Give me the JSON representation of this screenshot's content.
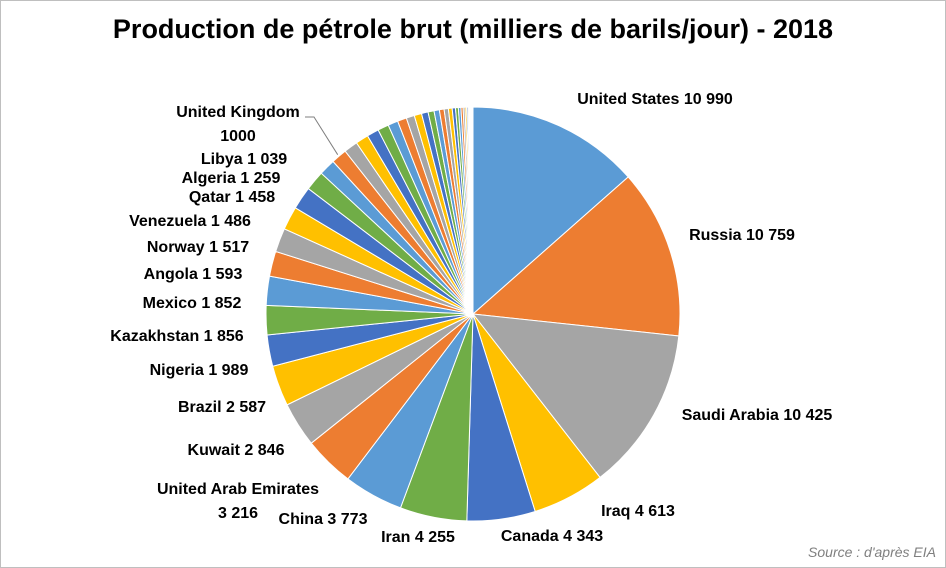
{
  "chart_data": {
    "type": "pie",
    "title": "Production de pétrole brut (milliers de barils/jour) - 2018",
    "source": "Source : d'après EIA",
    "palette": [
      "#5b9bd5",
      "#ed7d31",
      "#a5a5a5",
      "#ffc000",
      "#4472c4",
      "#70ad47"
    ],
    "labeled_slices": [
      {
        "label": "United States",
        "value_text": "10 990",
        "value": 10990
      },
      {
        "label": "Russia",
        "value_text": "10 759",
        "value": 10759
      },
      {
        "label": "Saudi Arabia",
        "value_text": "10 425",
        "value": 10425
      },
      {
        "label": "Iraq",
        "value_text": "4 613",
        "value": 4613
      },
      {
        "label": "Canada",
        "value_text": "4 343",
        "value": 4343
      },
      {
        "label": "Iran",
        "value_text": "4 255",
        "value": 4255
      },
      {
        "label": "China",
        "value_text": "3 773",
        "value": 3773
      },
      {
        "label": "United Arab Emirates",
        "value_text": "3 216",
        "value": 3216
      },
      {
        "label": "Kuwait",
        "value_text": "2 846",
        "value": 2846
      },
      {
        "label": "Brazil",
        "value_text": "2 587",
        "value": 2587
      },
      {
        "label": "Nigeria",
        "value_text": "1 989",
        "value": 1989
      },
      {
        "label": "Kazakhstan",
        "value_text": "1 856",
        "value": 1856
      },
      {
        "label": "Mexico",
        "value_text": "1 852",
        "value": 1852
      },
      {
        "label": "Angola",
        "value_text": "1 593",
        "value": 1593
      },
      {
        "label": "Norway",
        "value_text": "1 517",
        "value": 1517
      },
      {
        "label": "Venezuela",
        "value_text": "1 486",
        "value": 1486
      },
      {
        "label": "Qatar",
        "value_text": "1 458",
        "value": 1458
      },
      {
        "label": "Algeria",
        "value_text": "1 259",
        "value": 1259
      },
      {
        "label": "Libya",
        "value_text": "1 039",
        "value": 1039
      },
      {
        "label": "United Kingdom",
        "value_text": "1000",
        "value": 1000
      }
    ],
    "unlabeled_slice_values": [
      880,
      820,
      760,
      700,
      640,
      580,
      520,
      470,
      420,
      380,
      340,
      300,
      270,
      240,
      210,
      180,
      160,
      140,
      120,
      100,
      85,
      70,
      60,
      50,
      40,
      32,
      25,
      18,
      12,
      8
    ]
  }
}
